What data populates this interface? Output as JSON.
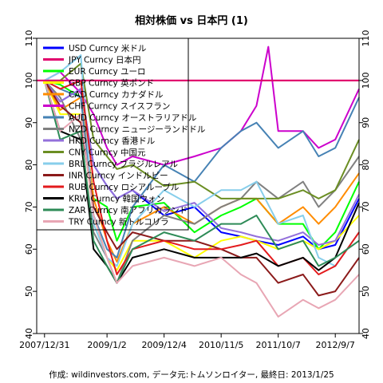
{
  "chart_data": {
    "type": "line",
    "title": "相対株価 vs 日本円 (1)",
    "caption": "作成: wildinvestors.com, データ元:トムソンロイター, 最終日: 2013/1/25",
    "xlabel": "",
    "ylabel": "",
    "ylim": [
      40,
      110
    ],
    "xlim": [
      "2007-11-15",
      "2013-01-25"
    ],
    "grid": false,
    "legend_placement": "top-left",
    "y_ticks": [
      40,
      50,
      60,
      70,
      80,
      90,
      100,
      110
    ],
    "x_ticks": [
      "2007/12/31",
      "2009/1/2",
      "2009/12/4",
      "2010/11/5",
      "2011/10/7",
      "2012/9/7"
    ],
    "x_tick_dates": [
      "2007-12-31",
      "2009-01-02",
      "2009-12-04",
      "2010-11-05",
      "2011-10-07",
      "2012-09-07"
    ],
    "reference_line": 100,
    "series": [
      {
        "name": "USD Curncy 米ドル",
        "color": "#0000ff",
        "width": 2,
        "values": [
          [
            "2007-12-31",
            100
          ],
          [
            "2008-04-01",
            95
          ],
          [
            "2008-08-01",
            98
          ],
          [
            "2008-10-15",
            80
          ],
          [
            "2009-01-02",
            75
          ],
          [
            "2009-03-01",
            72
          ],
          [
            "2009-06-01",
            74
          ],
          [
            "2009-12-04",
            68
          ],
          [
            "2010-06-01",
            70
          ],
          [
            "2010-11-05",
            64
          ],
          [
            "2011-03-01",
            63
          ],
          [
            "2011-06-01",
            62
          ],
          [
            "2011-10-07",
            61
          ],
          [
            "2012-03-01",
            63
          ],
          [
            "2012-06-01",
            60
          ],
          [
            "2012-09-07",
            61
          ],
          [
            "2013-01-25",
            72
          ]
        ]
      },
      {
        "name": "JPY Curncy 日本円",
        "color": "#e0006c",
        "width": 2,
        "values": [
          [
            "2007-11-15",
            100
          ],
          [
            "2013-01-25",
            100
          ]
        ]
      },
      {
        "name": "EUR Curncy ユーロ",
        "color": "#00ff00",
        "width": 2,
        "values": [
          [
            "2007-12-31",
            100
          ],
          [
            "2008-04-01",
            99
          ],
          [
            "2008-08-01",
            96
          ],
          [
            "2008-10-15",
            72
          ],
          [
            "2009-01-02",
            70
          ],
          [
            "2009-03-01",
            62
          ],
          [
            "2009-06-01",
            70
          ],
          [
            "2009-12-04",
            71
          ],
          [
            "2010-06-01",
            64
          ],
          [
            "2010-11-05",
            68
          ],
          [
            "2011-03-01",
            70
          ],
          [
            "2011-06-01",
            72
          ],
          [
            "2011-10-07",
            66
          ],
          [
            "2012-03-01",
            66
          ],
          [
            "2012-06-01",
            60
          ],
          [
            "2012-09-07",
            64
          ],
          [
            "2013-01-25",
            76
          ]
        ]
      },
      {
        "name": "GBP Curncy 英ポンド",
        "color": "#ffff00",
        "width": 2,
        "values": [
          [
            "2007-12-31",
            100
          ],
          [
            "2008-04-01",
            92
          ],
          [
            "2008-08-01",
            92
          ],
          [
            "2008-10-15",
            68
          ],
          [
            "2009-01-02",
            58
          ],
          [
            "2009-03-01",
            55
          ],
          [
            "2009-06-01",
            62
          ],
          [
            "2009-12-04",
            62
          ],
          [
            "2010-06-01",
            58
          ],
          [
            "2010-11-05",
            62
          ],
          [
            "2011-03-01",
            63
          ],
          [
            "2011-06-01",
            62
          ],
          [
            "2011-10-07",
            60
          ],
          [
            "2012-03-01",
            62
          ],
          [
            "2012-06-01",
            60
          ],
          [
            "2012-09-07",
            62
          ],
          [
            "2013-01-25",
            68
          ]
        ]
      },
      {
        "name": "CAD Curncy カナダドル",
        "color": "#ff8c00",
        "width": 2,
        "values": [
          [
            "2007-12-31",
            100
          ],
          [
            "2008-04-01",
            93
          ],
          [
            "2008-08-01",
            96
          ],
          [
            "2008-10-15",
            72
          ],
          [
            "2009-01-02",
            62
          ],
          [
            "2009-03-01",
            57
          ],
          [
            "2009-06-01",
            66
          ],
          [
            "2009-12-04",
            70
          ],
          [
            "2010-06-01",
            66
          ],
          [
            "2010-11-05",
            70
          ],
          [
            "2011-03-01",
            72
          ],
          [
            "2011-06-01",
            72
          ],
          [
            "2011-10-07",
            66
          ],
          [
            "2012-03-01",
            70
          ],
          [
            "2012-06-01",
            66
          ],
          [
            "2012-09-07",
            70
          ],
          [
            "2013-01-25",
            78
          ]
        ]
      },
      {
        "name": "CHF Curncy スイスフラン",
        "color": "#cc00cc",
        "width": 2,
        "values": [
          [
            "2007-12-31",
            100
          ],
          [
            "2008-04-01",
            102
          ],
          [
            "2008-08-01",
            97
          ],
          [
            "2008-10-15",
            92
          ],
          [
            "2009-01-02",
            84
          ],
          [
            "2009-03-01",
            80
          ],
          [
            "2009-06-01",
            82
          ],
          [
            "2009-12-04",
            80
          ],
          [
            "2010-06-01",
            82
          ],
          [
            "2010-11-05",
            84
          ],
          [
            "2011-03-01",
            88
          ],
          [
            "2011-06-01",
            94
          ],
          [
            "2011-08-10",
            108
          ],
          [
            "2011-10-07",
            88
          ],
          [
            "2012-03-01",
            88
          ],
          [
            "2012-06-01",
            84
          ],
          [
            "2012-09-07",
            86
          ],
          [
            "2013-01-25",
            98
          ]
        ]
      },
      {
        "name": "AUD Curncy オーストラリアドル",
        "color": "#4682b4",
        "width": 2,
        "values": [
          [
            "2007-12-31",
            100
          ],
          [
            "2008-04-01",
            98
          ],
          [
            "2008-08-01",
            96
          ],
          [
            "2008-10-15",
            68
          ],
          [
            "2009-01-02",
            60
          ],
          [
            "2009-03-01",
            58
          ],
          [
            "2009-06-01",
            70
          ],
          [
            "2009-12-04",
            80
          ],
          [
            "2010-06-01",
            76
          ],
          [
            "2010-11-05",
            84
          ],
          [
            "2011-03-01",
            88
          ],
          [
            "2011-06-01",
            90
          ],
          [
            "2011-10-07",
            84
          ],
          [
            "2012-03-01",
            88
          ],
          [
            "2012-06-01",
            82
          ],
          [
            "2012-09-07",
            84
          ],
          [
            "2013-01-25",
            96
          ]
        ]
      },
      {
        "name": "NZD Curncy ニュージーランドドル",
        "color": "#808080",
        "width": 2,
        "values": [
          [
            "2007-12-31",
            100
          ],
          [
            "2008-04-01",
            96
          ],
          [
            "2008-08-01",
            86
          ],
          [
            "2008-10-15",
            64
          ],
          [
            "2009-01-02",
            58
          ],
          [
            "2009-03-01",
            52
          ],
          [
            "2009-06-01",
            62
          ],
          [
            "2009-12-04",
            68
          ],
          [
            "2010-06-01",
            66
          ],
          [
            "2010-11-05",
            70
          ],
          [
            "2011-03-01",
            72
          ],
          [
            "2011-06-01",
            76
          ],
          [
            "2011-10-07",
            72
          ],
          [
            "2012-03-01",
            76
          ],
          [
            "2012-06-01",
            70
          ],
          [
            "2012-09-07",
            74
          ],
          [
            "2013-01-25",
            82
          ]
        ]
      },
      {
        "name": "HKD Curncy 香港ドル",
        "color": "#9370db",
        "width": 2,
        "values": [
          [
            "2007-12-31",
            100
          ],
          [
            "2008-04-01",
            95
          ],
          [
            "2008-08-01",
            98
          ],
          [
            "2008-10-15",
            80
          ],
          [
            "2009-01-02",
            75
          ],
          [
            "2009-03-01",
            72
          ],
          [
            "2009-06-01",
            74
          ],
          [
            "2009-12-04",
            69
          ],
          [
            "2010-06-01",
            71
          ],
          [
            "2010-11-05",
            65
          ],
          [
            "2011-03-01",
            64
          ],
          [
            "2011-06-01",
            63
          ],
          [
            "2011-10-07",
            62
          ],
          [
            "2012-03-01",
            64
          ],
          [
            "2012-06-01",
            61
          ],
          [
            "2012-09-07",
            62
          ],
          [
            "2013-01-25",
            73
          ]
        ]
      },
      {
        "name": "CNY Curncy 中国元",
        "color": "#6b8e23",
        "width": 2,
        "values": [
          [
            "2007-12-31",
            100
          ],
          [
            "2008-04-01",
            100
          ],
          [
            "2008-08-01",
            104
          ],
          [
            "2008-10-15",
            86
          ],
          [
            "2009-01-02",
            82
          ],
          [
            "2009-03-01",
            79
          ],
          [
            "2009-06-01",
            80
          ],
          [
            "2009-12-04",
            75
          ],
          [
            "2010-06-01",
            76
          ],
          [
            "2010-11-05",
            72
          ],
          [
            "2011-03-01",
            72
          ],
          [
            "2011-06-01",
            72
          ],
          [
            "2011-10-07",
            72
          ],
          [
            "2012-03-01",
            74
          ],
          [
            "2012-06-01",
            72
          ],
          [
            "2012-09-07",
            74
          ],
          [
            "2013-01-25",
            86
          ]
        ]
      },
      {
        "name": "BRL Curncy ブラジルレアル",
        "color": "#87ceeb",
        "width": 2,
        "values": [
          [
            "2007-12-31",
            100
          ],
          [
            "2008-04-01",
            102
          ],
          [
            "2008-08-01",
            106
          ],
          [
            "2008-10-15",
            66
          ],
          [
            "2009-01-02",
            58
          ],
          [
            "2009-03-01",
            56
          ],
          [
            "2009-06-01",
            66
          ],
          [
            "2009-12-04",
            74
          ],
          [
            "2010-06-01",
            70
          ],
          [
            "2010-11-05",
            74
          ],
          [
            "2011-03-01",
            74
          ],
          [
            "2011-06-01",
            76
          ],
          [
            "2011-10-07",
            66
          ],
          [
            "2012-03-01",
            68
          ],
          [
            "2012-06-01",
            58
          ],
          [
            "2012-09-07",
            56
          ],
          [
            "2013-01-25",
            64
          ]
        ]
      },
      {
        "name": "INR Curncy インドルピー",
        "color": "#8b1a1a",
        "width": 2,
        "values": [
          [
            "2007-12-31",
            100
          ],
          [
            "2008-04-01",
            94
          ],
          [
            "2008-08-01",
            90
          ],
          [
            "2008-10-15",
            70
          ],
          [
            "2009-01-02",
            64
          ],
          [
            "2009-03-01",
            60
          ],
          [
            "2009-06-01",
            64
          ],
          [
            "2009-12-04",
            62
          ],
          [
            "2010-06-01",
            62
          ],
          [
            "2010-11-05",
            60
          ],
          [
            "2011-03-01",
            58
          ],
          [
            "2011-06-01",
            58
          ],
          [
            "2011-10-07",
            52
          ],
          [
            "2012-03-01",
            54
          ],
          [
            "2012-06-01",
            49
          ],
          [
            "2012-09-07",
            50
          ],
          [
            "2013-01-25",
            58
          ]
        ]
      },
      {
        "name": "RUB Curncy ロシアルーブル",
        "color": "#e31a1c",
        "width": 2,
        "values": [
          [
            "2007-12-31",
            100
          ],
          [
            "2008-04-01",
            98
          ],
          [
            "2008-08-01",
            100
          ],
          [
            "2008-10-15",
            76
          ],
          [
            "2009-01-02",
            62
          ],
          [
            "2009-03-01",
            54
          ],
          [
            "2009-06-01",
            60
          ],
          [
            "2009-12-04",
            62
          ],
          [
            "2010-06-01",
            60
          ],
          [
            "2010-11-05",
            60
          ],
          [
            "2011-03-01",
            61
          ],
          [
            "2011-06-01",
            62
          ],
          [
            "2011-10-07",
            56
          ],
          [
            "2012-03-01",
            58
          ],
          [
            "2012-06-01",
            54
          ],
          [
            "2012-09-07",
            56
          ],
          [
            "2013-01-25",
            64
          ]
        ]
      },
      {
        "name": "KRW Curncy 韓国ウォン",
        "color": "#000000",
        "width": 2,
        "values": [
          [
            "2007-12-31",
            100
          ],
          [
            "2008-04-01",
            88
          ],
          [
            "2008-08-01",
            86
          ],
          [
            "2008-10-15",
            60
          ],
          [
            "2009-01-02",
            56
          ],
          [
            "2009-03-01",
            52
          ],
          [
            "2009-06-01",
            58
          ],
          [
            "2009-12-04",
            60
          ],
          [
            "2010-06-01",
            58
          ],
          [
            "2010-11-05",
            58
          ],
          [
            "2011-03-01",
            58
          ],
          [
            "2011-06-01",
            59
          ],
          [
            "2011-10-07",
            56
          ],
          [
            "2012-03-01",
            58
          ],
          [
            "2012-06-01",
            55
          ],
          [
            "2012-09-07",
            58
          ],
          [
            "2013-01-25",
            71
          ]
        ]
      },
      {
        "name": "ZAR Curncy 南アフリカランド",
        "color": "#2e8b57",
        "width": 2,
        "values": [
          [
            "2007-12-31",
            100
          ],
          [
            "2008-04-01",
            86
          ],
          [
            "2008-08-01",
            88
          ],
          [
            "2008-10-15",
            62
          ],
          [
            "2009-01-02",
            56
          ],
          [
            "2009-03-01",
            52
          ],
          [
            "2009-06-01",
            60
          ],
          [
            "2009-12-04",
            64
          ],
          [
            "2010-06-01",
            62
          ],
          [
            "2010-11-05",
            66
          ],
          [
            "2011-03-01",
            66
          ],
          [
            "2011-06-01",
            68
          ],
          [
            "2011-10-07",
            60
          ],
          [
            "2012-03-01",
            62
          ],
          [
            "2012-06-01",
            56
          ],
          [
            "2012-09-07",
            58
          ],
          [
            "2013-01-25",
            62
          ]
        ]
      },
      {
        "name": "TRY Curncy 新トルコリラ",
        "color": "#e8a6b4",
        "width": 2,
        "values": [
          [
            "2007-12-31",
            100
          ],
          [
            "2008-04-01",
            88
          ],
          [
            "2008-08-01",
            92
          ],
          [
            "2008-10-15",
            68
          ],
          [
            "2009-01-02",
            58
          ],
          [
            "2009-03-01",
            52
          ],
          [
            "2009-06-01",
            56
          ],
          [
            "2009-12-04",
            58
          ],
          [
            "2010-06-01",
            56
          ],
          [
            "2010-11-05",
            58
          ],
          [
            "2011-03-01",
            54
          ],
          [
            "2011-06-01",
            52
          ],
          [
            "2011-10-07",
            44
          ],
          [
            "2012-03-01",
            48
          ],
          [
            "2012-06-01",
            46
          ],
          [
            "2012-09-07",
            48
          ],
          [
            "2013-01-25",
            54
          ]
        ]
      }
    ]
  }
}
